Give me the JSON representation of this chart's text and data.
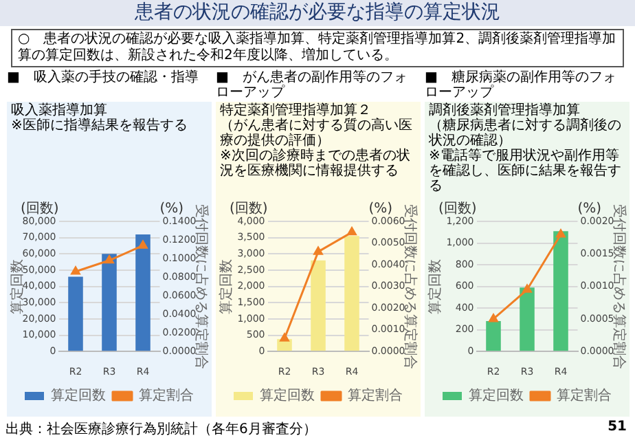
{
  "chart_data": [
    {
      "type": "bar",
      "title": "吸入薬指導加算",
      "subtitle": "※医師に指導結果を報告する",
      "xlabel": null,
      "ylabel": "算定回数",
      "y2label": "受付回数に占める算定割合",
      "annotations": [
        "■　吸入薬の手技の確認・指導",
        "(回数)",
        "(%)",
        "患者の状況の確認が必要な指導の算定状況",
        "○　患者の状況の確認が必要な吸入薬指導加算、特定薬剤管理指導加算2、調剤後薬剤管理指導加算の算定回数は、新設された令和2年度以降、増加している。",
        "出典：社会医療診療行為別統計（各年6月審査分）",
        "51"
      ],
      "categories": [
        "R2",
        "R3",
        "R4"
      ],
      "series": [
        {
          "name": "算定回数",
          "color": "#3d78c0",
          "values": [
            46000,
            60000,
            72000
          ]
        },
        {
          "name": "算定割合",
          "type": "line",
          "axis": "y2",
          "color": "#f07f25",
          "values": [
            0.086,
            0.098,
            0.114
          ]
        }
      ],
      "ylim": [
        0,
        80000
      ],
      "yticks": [
        0,
        {
          "value": 10000,
          "label": "10,000"
        },
        {
          "value": 20000,
          "label": "20,000"
        },
        {
          "value": 30000,
          "label": "30,000"
        },
        {
          "value": 40000,
          "label": "40,000"
        },
        {
          "value": 50000,
          "label": "50,000"
        },
        {
          "value": 60000,
          "label": "60,000"
        },
        {
          "value": 70000,
          "label": "70,000"
        },
        {
          "value": 80000,
          "label": "80,000"
        }
      ],
      "y2lim": [
        0,
        0.14
      ],
      "y2ticks": [
        {
          "value": 0,
          "label": "0.0000"
        },
        {
          "value": 0.02,
          "label": "0.0200"
        },
        {
          "value": 0.04,
          "label": "0.0400"
        },
        {
          "value": 0.06,
          "label": "0.0600"
        },
        {
          "value": 0.08,
          "label": "0.0800"
        },
        {
          "value": 0.1,
          "label": "0.1000"
        },
        {
          "value": 0.12,
          "label": "0.1200"
        },
        {
          "value": 0.14,
          "label": "0.1400"
        }
      ],
      "grid": "y",
      "legend": "bottom",
      "marker": "triangle"
    },
    {
      "type": "bar",
      "title": "特定薬剤管理指導加算２",
      "subtitle": "※次回の診療時までの患者の状況を医療機関に情報提供する",
      "ylabel": "算定回数",
      "y2label": "受付回数に占める算定割合",
      "annotations": [
        "■　がん患者の副作用等のフォローアップ",
        "(回数)",
        "(%)",
        "（がん患者に対する質の高い医療の提供の評価）"
      ],
      "categories": [
        "R2",
        "R3",
        "R4"
      ],
      "series": [
        {
          "name": "算定回数",
          "color": "#f5e98a",
          "values": [
            380,
            2800,
            3550
          ]
        },
        {
          "name": "算定割合",
          "type": "line",
          "axis": "y2",
          "color": "#f07f25",
          "values": [
            0.0006,
            0.0046,
            0.0055
          ]
        }
      ],
      "ylim": [
        0,
        4000
      ],
      "yticks": [
        0,
        500,
        {
          "value": 1000,
          "label": "1,000"
        },
        {
          "value": 1500,
          "label": "1,500"
        },
        {
          "value": 2000,
          "label": "2,000"
        },
        {
          "value": 2500,
          "label": "2,500"
        },
        {
          "value": 3000,
          "label": "3,000"
        },
        {
          "value": 3500,
          "label": "3,500"
        },
        {
          "value": 4000,
          "label": "4,000"
        }
      ],
      "y2lim": [
        0,
        0.006
      ],
      "y2ticks": [
        {
          "value": 0,
          "label": "0.0000"
        },
        {
          "value": 0.001,
          "label": "0.0010"
        },
        {
          "value": 0.002,
          "label": "0.0020"
        },
        {
          "value": 0.003,
          "label": "0.0030"
        },
        {
          "value": 0.004,
          "label": "0.0040"
        },
        {
          "value": 0.005,
          "label": "0.0050"
        },
        {
          "value": 0.006,
          "label": "0.0060"
        }
      ],
      "grid": "y",
      "legend": "bottom",
      "marker": "triangle"
    },
    {
      "type": "bar",
      "title": "調剤後薬剤管理指導加算",
      "subtitle": "※電話等で服用状況や副作用等を確認し、医師に結果を報告する",
      "ylabel": "算定回数",
      "y2label": "受付回数に占める算定割合",
      "annotations": [
        "■　糖尿病薬の副作用等のフォローアップ",
        "(回数)",
        "(%)",
        "（糖尿病患者に対する調剤後の状況の確認）"
      ],
      "categories": [
        "R2",
        "R3",
        "R4"
      ],
      "series": [
        {
          "name": "算定回数",
          "color": "#4cc27a",
          "values": [
            280,
            590,
            1110
          ]
        },
        {
          "name": "算定割合",
          "type": "line",
          "axis": "y2",
          "color": "#f07f25",
          "values": [
            0.0005,
            0.00095,
            0.0018
          ]
        }
      ],
      "ylim": [
        0,
        1200
      ],
      "yticks": [
        0,
        200,
        400,
        600,
        800,
        {
          "value": 1000,
          "label": "1,000"
        },
        {
          "value": 1200,
          "label": "1,200"
        }
      ],
      "y2lim": [
        0,
        0.002
      ],
      "y2ticks": [
        {
          "value": 0,
          "label": "0.0000"
        },
        {
          "value": 0.0005,
          "label": "0.0005"
        },
        {
          "value": 0.001,
          "label": "0.0010"
        },
        {
          "value": 0.0015,
          "label": "0.0015"
        },
        {
          "value": 0.002,
          "label": "0.0020"
        }
      ],
      "grid": "y",
      "legend": "bottom",
      "marker": "triangle"
    }
  ]
}
